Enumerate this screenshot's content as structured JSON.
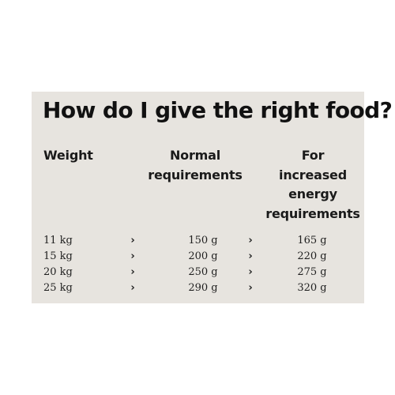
{
  "title": "How do I give the right food?",
  "headers": {
    "weight": "Weight",
    "normal": [
      "Normal",
      "requirements"
    ],
    "increased": [
      "For",
      "increased",
      "energy",
      "requirements"
    ]
  },
  "separator": "›",
  "rows": [
    {
      "weight": "11 kg",
      "normal": "150 g",
      "increased": "165 g"
    },
    {
      "weight": "15 kg",
      "normal": "200 g",
      "increased": "220 g"
    },
    {
      "weight": "20 kg",
      "normal": "250 g",
      "increased": "275 g"
    },
    {
      "weight": "25 kg",
      "normal": "290 g",
      "increased": "320 g"
    }
  ],
  "colors": {
    "card_background": "#e7e4df",
    "text": "#111111"
  }
}
